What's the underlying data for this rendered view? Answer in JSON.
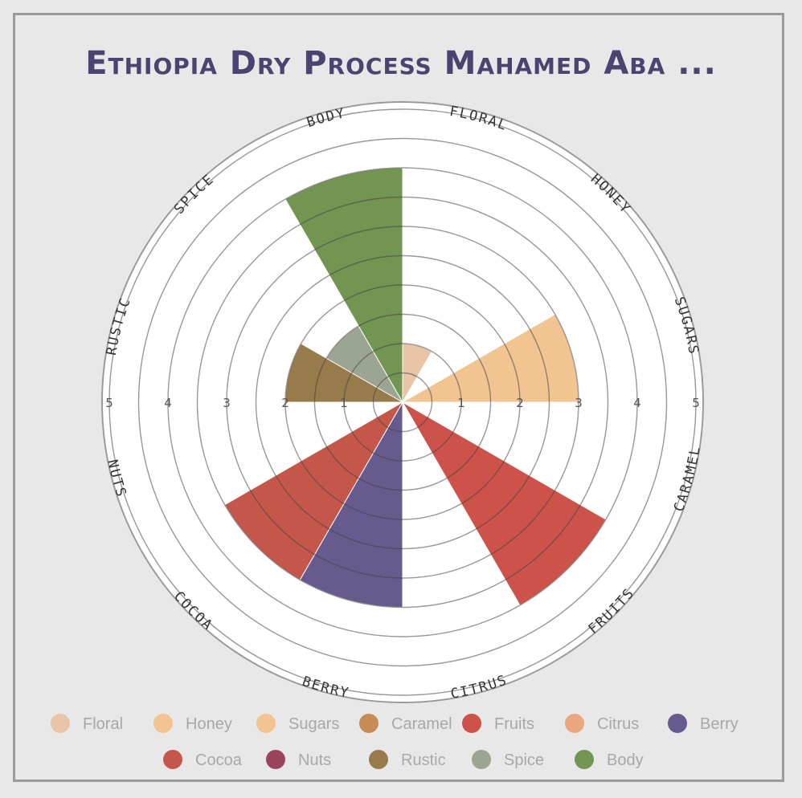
{
  "chart_data": {
    "type": "radial-bar",
    "title": "Ethiopia Dry Process Mahamed Aba ...",
    "rmax": 5,
    "rings": [
      0.5,
      1,
      1.5,
      2,
      2.5,
      3,
      3.5,
      4,
      4.5,
      5
    ],
    "tick_labels": [
      "5",
      "4",
      "3",
      "2",
      "1",
      "1",
      "2",
      "3",
      "4",
      "5"
    ],
    "categories": [
      {
        "label": "Floral",
        "value": 1.0,
        "color": "#e9c5a8"
      },
      {
        "label": "Honey",
        "value": 0.0,
        "color": "#f2c491"
      },
      {
        "label": "Sugars",
        "value": 3.0,
        "color": "#f2c491"
      },
      {
        "label": "Caramel",
        "value": 0.0,
        "color": "#c78c55"
      },
      {
        "label": "Fruits",
        "value": 4.0,
        "color": "#cc524a"
      },
      {
        "label": "Citrus",
        "value": 0.0,
        "color": "#eba77f"
      },
      {
        "label": "Berry",
        "value": 3.5,
        "color": "#675a8c"
      },
      {
        "label": "Cocoa",
        "value": 3.5,
        "color": "#c5564a"
      },
      {
        "label": "Nuts",
        "value": 0.0,
        "color": "#9b4460"
      },
      {
        "label": "Rustic",
        "value": 2.0,
        "color": "#987b4a"
      },
      {
        "label": "Spice",
        "value": 1.5,
        "color": "#9ca591"
      },
      {
        "label": "Body",
        "value": 4.0,
        "color": "#729552"
      }
    ],
    "legend": {
      "position": "bottom"
    }
  }
}
